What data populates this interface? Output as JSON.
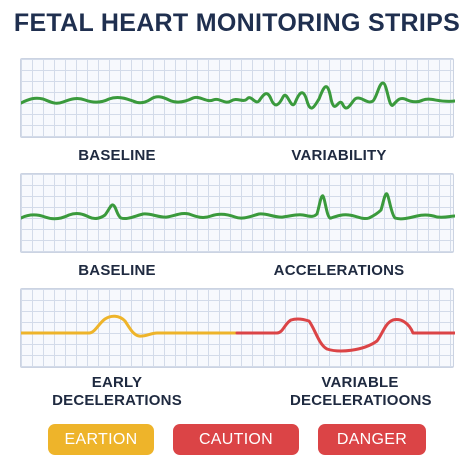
{
  "title": "FETAL HEART MONITORING STRIPS",
  "colors": {
    "green": "#3a9a3c",
    "yellow": "#eeb42a",
    "red": "#db4446",
    "text": "#1f2a40"
  },
  "strips": [
    {
      "left_label": "BASELINE",
      "right_label": "VARIABILITY"
    },
    {
      "left_label": "BASELINE",
      "right_label": "ACCELERATIONS"
    },
    {
      "left_label": "EARLY DECELERATIONS",
      "right_label": "VARIABLE DECELERATIOONS"
    }
  ],
  "legend": [
    {
      "label": "EARTION",
      "color": "#eeb42a"
    },
    {
      "label": "CAUTION",
      "color": "#db4446"
    },
    {
      "label": "DANGER",
      "color": "#db4446"
    }
  ]
}
